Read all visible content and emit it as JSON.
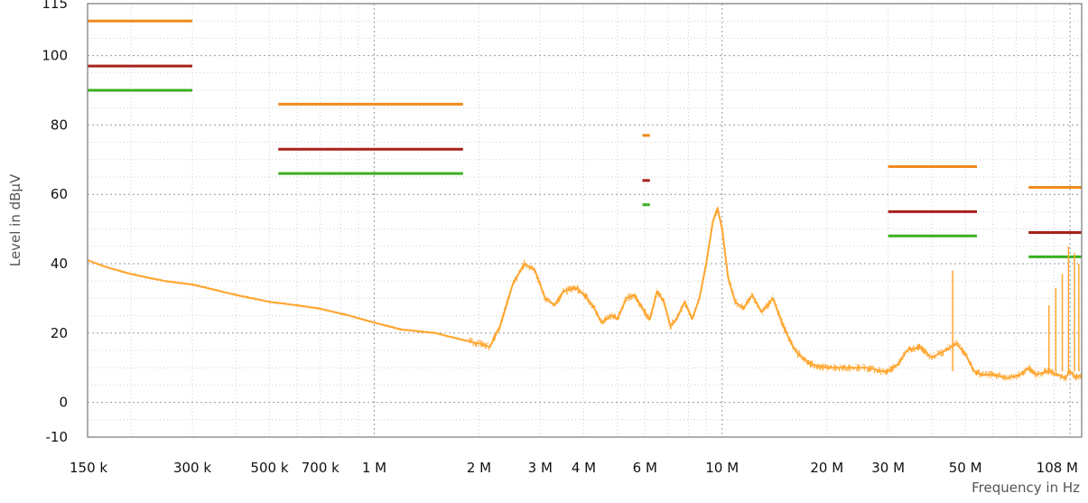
{
  "chart_data": {
    "type": "line",
    "title": "",
    "xlabel": "Frequency in Hz",
    "ylabel": "Level in  dBµV",
    "x_scale": "log",
    "xlim": [
      150000,
      108000000
    ],
    "ylim": [
      -10,
      115
    ],
    "grid": true,
    "x_ticks": [
      {
        "value": 150000,
        "label": "150 k"
      },
      {
        "value": 300000,
        "label": "300 k"
      },
      {
        "value": 500000,
        "label": "500 k"
      },
      {
        "value": 700000,
        "label": "700 k"
      },
      {
        "value": 1000000,
        "label": "1 M"
      },
      {
        "value": 2000000,
        "label": "2 M"
      },
      {
        "value": 3000000,
        "label": "3 M"
      },
      {
        "value": 4000000,
        "label": "4 M"
      },
      {
        "value": 6000000,
        "label": "6 M"
      },
      {
        "value": 10000000,
        "label": "10 M"
      },
      {
        "value": 20000000,
        "label": "20 M"
      },
      {
        "value": 30000000,
        "label": "30 M"
      },
      {
        "value": 50000000,
        "label": "50 M"
      },
      {
        "value": 108000000,
        "label": "108 M"
      }
    ],
    "y_ticks": [
      {
        "value": 115,
        "label": "115"
      },
      {
        "value": 100,
        "label": "100"
      },
      {
        "value": 80,
        "label": "80"
      },
      {
        "value": 60,
        "label": "60"
      },
      {
        "value": 40,
        "label": "40"
      },
      {
        "value": 20,
        "label": "20"
      },
      {
        "value": 0,
        "label": "0"
      },
      {
        "value": -10,
        "label": "-10"
      }
    ],
    "limit_lines": [
      {
        "color": "#f08a1c",
        "segments": [
          {
            "x": [
              150000,
              300000
            ],
            "y": 110
          },
          {
            "x": [
              530000,
              1800000
            ],
            "y": 86
          },
          {
            "x": [
              5900000,
              6200000
            ],
            "y": 77
          },
          {
            "x": [
              30000000,
              54000000
            ],
            "y": 68
          },
          {
            "x": [
              76000000,
              108000000
            ],
            "y": 62
          }
        ]
      },
      {
        "color": "#a8201a",
        "segments": [
          {
            "x": [
              150000,
              300000
            ],
            "y": 97
          },
          {
            "x": [
              530000,
              1800000
            ],
            "y": 73
          },
          {
            "x": [
              5900000,
              6200000
            ],
            "y": 64
          },
          {
            "x": [
              30000000,
              54000000
            ],
            "y": 55
          },
          {
            "x": [
              76000000,
              108000000
            ],
            "y": 49
          }
        ]
      },
      {
        "color": "#3cb021",
        "segments": [
          {
            "x": [
              150000,
              300000
            ],
            "y": 90
          },
          {
            "x": [
              530000,
              1800000
            ],
            "y": 66
          },
          {
            "x": [
              5900000,
              6200000
            ],
            "y": 57
          },
          {
            "x": [
              30000000,
              54000000
            ],
            "y": 48
          },
          {
            "x": [
              76000000,
              108000000
            ],
            "y": 42
          }
        ]
      }
    ],
    "series": [
      {
        "color": "#ffa630",
        "x": [
          150000,
          170000,
          200000,
          250000,
          300000,
          400000,
          500000,
          600000,
          700000,
          850000,
          1000000,
          1200000,
          1500000,
          1800000,
          2000000,
          2150000,
          2300000,
          2500000,
          2700000,
          2900000,
          3100000,
          3300000,
          3500000,
          3800000,
          4100000,
          4300000,
          4500000,
          4800000,
          5000000,
          5300000,
          5600000,
          5900000,
          6200000,
          6500000,
          6800000,
          7100000,
          7400000,
          7800000,
          8200000,
          8600000,
          9000000,
          9400000,
          9700000,
          10000000,
          10400000,
          10900000,
          11500000,
          12200000,
          13000000,
          14000000,
          15000000,
          15800000,
          16500000,
          18000000,
          20000000,
          23000000,
          26000000,
          29000000,
          30000000,
          32000000,
          34000000,
          37000000,
          40000000,
          44000000,
          47000000,
          50000000,
          53000000,
          56000000,
          60000000,
          66000000,
          72000000,
          76000000,
          80000000,
          86000000,
          92000000,
          97000000,
          100000000,
          104000000,
          108000000
        ],
        "y": [
          41,
          39,
          37,
          35,
          34,
          31,
          29,
          28,
          27,
          25,
          23,
          21,
          20,
          18,
          17,
          16,
          22,
          34,
          40,
          38,
          30,
          28,
          32,
          33,
          30,
          27,
          23,
          25,
          24,
          30,
          31,
          27,
          24,
          32,
          29,
          22,
          24,
          29,
          24,
          30,
          40,
          52,
          56,
          50,
          36,
          29,
          27,
          31,
          26,
          30,
          22,
          17,
          14,
          11,
          10,
          10,
          10,
          9,
          9,
          11,
          15,
          16,
          13,
          15,
          17,
          14,
          9,
          8,
          8,
          7,
          8,
          10,
          8,
          9,
          8,
          7,
          9,
          7,
          8
        ]
      }
    ],
    "spikes": [
      {
        "x": 46000000,
        "y": 38
      },
      {
        "x": 87000000,
        "y": 28
      },
      {
        "x": 91000000,
        "y": 33
      },
      {
        "x": 95000000,
        "y": 37
      },
      {
        "x": 99000000,
        "y": 45
      },
      {
        "x": 103000000,
        "y": 43
      },
      {
        "x": 106000000,
        "y": 40
      }
    ]
  }
}
